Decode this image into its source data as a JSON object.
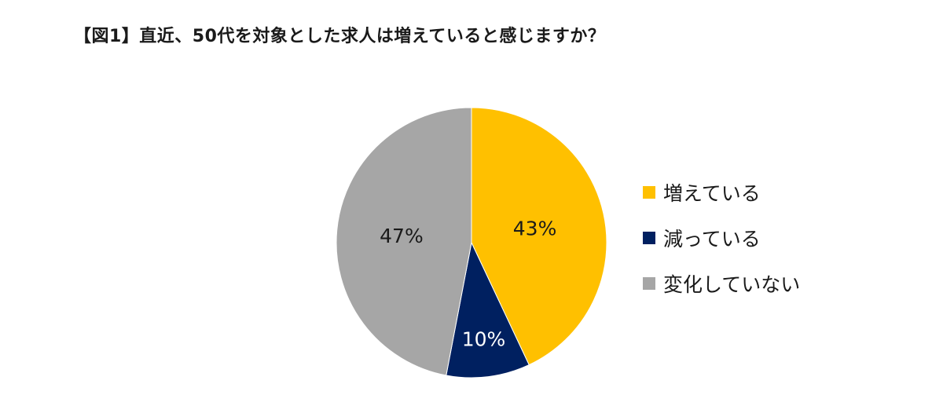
{
  "chart_data": {
    "type": "pie",
    "title": "【図1】直近、50代を対象とした求人は増えていると感じますか？",
    "categories": [
      "増えている",
      "減っている",
      "変化していない"
    ],
    "values": [
      43,
      10,
      47
    ],
    "value_labels": [
      "43%",
      "10%",
      "47%"
    ],
    "colors": [
      "#FFC000",
      "#002060",
      "#A6A6A6"
    ],
    "label_colors": [
      "#1a1a1a",
      "#ffffff",
      "#1a1a1a"
    ],
    "start_angle_deg": 0,
    "direction": "clockwise",
    "legend_position": "right"
  }
}
